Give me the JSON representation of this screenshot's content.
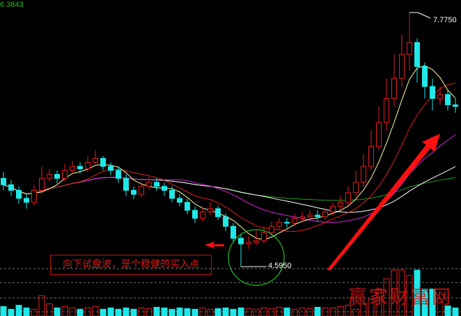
{
  "chart_data": {
    "type": "candlestick",
    "top_left_label": "6.3843",
    "high_label": "7.7750",
    "low_label": "4.5950",
    "annotation": "向下试盘波，是个稳健的买入点",
    "watermark": "赢家财富网",
    "colors": {
      "up": "#e02020",
      "down": "#20e8e8",
      "ma5": "#ffffa0",
      "ma10": "#e02020",
      "ma20": "#e020e0",
      "ma60": "#20a020",
      "ma_extra": "#ffffff",
      "circle": "#20c020",
      "arrow": "#ff1010"
    },
    "ylim": [
      4.5,
      7.8
    ],
    "close": [
      5.62,
      5.55,
      5.45,
      5.4,
      5.55,
      5.7,
      5.75,
      5.7,
      5.8,
      5.85,
      5.82,
      5.9,
      5.95,
      5.85,
      5.8,
      5.7,
      5.55,
      5.5,
      5.6,
      5.65,
      5.6,
      5.55,
      5.45,
      5.4,
      5.3,
      5.2,
      5.28,
      5.32,
      5.22,
      5.1,
      4.95,
      4.88,
      4.9,
      4.92,
      5.02,
      5.1,
      5.15,
      5.14,
      5.2,
      5.22,
      5.24,
      5.22,
      5.28,
      5.35,
      5.4,
      5.52,
      5.65,
      5.85,
      6.1,
      6.4,
      6.7,
      6.95,
      7.25,
      7.4,
      7.1,
      6.85,
      6.7,
      6.75,
      6.62,
      6.6
    ],
    "open": [
      5.7,
      5.62,
      5.55,
      5.45,
      5.4,
      5.55,
      5.7,
      5.75,
      5.7,
      5.8,
      5.85,
      5.82,
      5.9,
      5.95,
      5.85,
      5.8,
      5.7,
      5.55,
      5.5,
      5.6,
      5.65,
      5.6,
      5.55,
      5.45,
      5.4,
      5.3,
      5.2,
      5.28,
      5.32,
      5.22,
      5.1,
      4.95,
      4.88,
      4.9,
      4.92,
      5.02,
      5.1,
      5.15,
      5.14,
      5.2,
      5.22,
      5.24,
      5.22,
      5.28,
      5.35,
      5.4,
      5.52,
      5.65,
      5.85,
      6.1,
      6.4,
      6.7,
      6.95,
      7.25,
      7.4,
      7.1,
      6.85,
      6.7,
      6.75,
      6.62
    ],
    "high": [
      5.78,
      5.68,
      5.6,
      5.5,
      5.62,
      5.85,
      5.82,
      5.8,
      5.88,
      5.92,
      5.9,
      5.98,
      6.05,
      5.98,
      5.9,
      5.85,
      5.75,
      5.6,
      5.66,
      5.72,
      5.7,
      5.65,
      5.6,
      5.5,
      5.44,
      5.35,
      5.34,
      5.4,
      5.36,
      5.26,
      5.14,
      5.0,
      4.98,
      5.05,
      5.1,
      5.16,
      5.2,
      5.2,
      5.26,
      5.28,
      5.3,
      5.3,
      5.34,
      5.4,
      5.48,
      5.6,
      5.8,
      6.0,
      6.3,
      6.6,
      6.95,
      7.25,
      7.5,
      7.775,
      7.45,
      7.15,
      6.95,
      6.85,
      6.8,
      6.7
    ],
    "low": [
      5.55,
      5.48,
      5.38,
      5.32,
      5.36,
      5.5,
      5.66,
      5.64,
      5.66,
      5.75,
      5.76,
      5.78,
      5.85,
      5.8,
      5.74,
      5.64,
      5.48,
      5.44,
      5.46,
      5.56,
      5.54,
      5.48,
      5.4,
      5.35,
      5.25,
      5.14,
      5.16,
      5.24,
      5.18,
      5.04,
      4.9,
      4.595,
      4.82,
      4.86,
      4.88,
      4.98,
      5.06,
      5.08,
      5.1,
      5.15,
      5.18,
      5.16,
      5.18,
      5.24,
      5.3,
      5.36,
      5.46,
      5.6,
      5.8,
      6.05,
      6.3,
      6.6,
      6.85,
      7.05,
      6.9,
      6.7,
      6.55,
      6.62,
      6.55,
      6.52
    ],
    "volume": [
      14,
      10,
      16,
      12,
      10,
      30,
      18,
      12,
      14,
      12,
      10,
      12,
      14,
      10,
      12,
      10,
      12,
      10,
      12,
      11,
      13,
      12,
      10,
      12,
      11,
      10,
      12,
      10,
      11,
      12,
      10,
      12,
      11,
      10,
      12,
      11,
      13,
      12,
      10,
      12,
      11,
      13,
      12,
      12,
      14,
      16,
      10,
      18,
      25,
      40,
      55,
      68,
      68,
      60,
      68,
      40,
      40,
      20,
      15,
      12
    ]
  }
}
